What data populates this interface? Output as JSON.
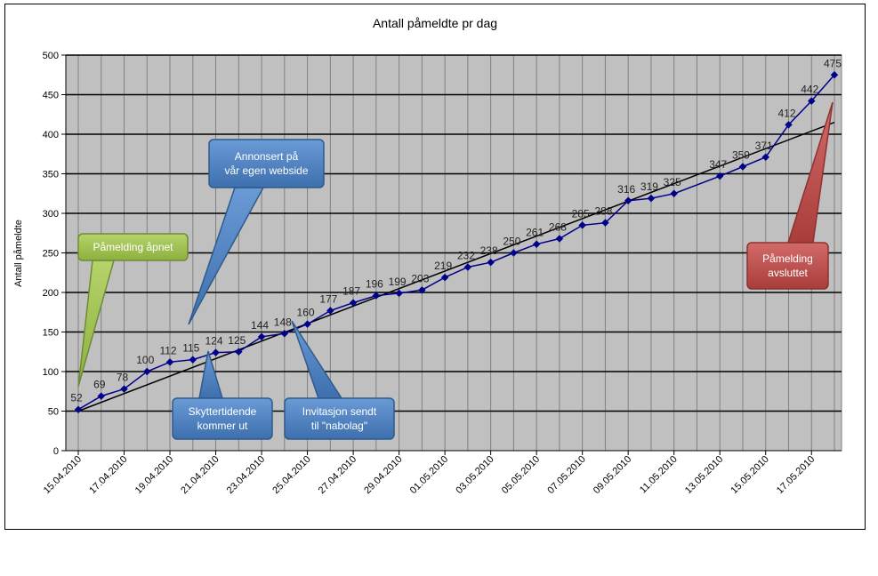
{
  "chart_data": {
    "type": "line",
    "title": "Antall påmeldte pr dag",
    "ylabel": "Antall påmeldte",
    "xlabel": "",
    "ylim": [
      0,
      500
    ],
    "yticks": [
      0,
      50,
      100,
      150,
      200,
      250,
      300,
      350,
      400,
      450,
      500
    ],
    "grid": true,
    "legend": "none",
    "x_range": [
      "15.04.2010",
      "18.05.2010"
    ],
    "x_tick_labels": [
      "15.04.2010",
      "17.04.2010",
      "19.04.2010",
      "21.04.2010",
      "23.04.2010",
      "25.04.2010",
      "27.04.2010",
      "29.04.2010",
      "01.05.2010",
      "03.05.2010",
      "05.05.2010",
      "07.05.2010",
      "09.05.2010",
      "11.05.2010",
      "13.05.2010",
      "15.05.2010",
      "17.05.2010"
    ],
    "series": [
      {
        "color": "#00008b",
        "points": [
          {
            "x": "15.04.2010",
            "y": 52,
            "label": "52"
          },
          {
            "x": "16.04.2010",
            "y": 69,
            "label": "69"
          },
          {
            "x": "17.04.2010",
            "y": 78,
            "label": "78"
          },
          {
            "x": "18.04.2010",
            "y": 100,
            "label": "100"
          },
          {
            "x": "19.04.2010",
            "y": 112,
            "label": "112"
          },
          {
            "x": "20.04.2010",
            "y": 115,
            "label": "115"
          },
          {
            "x": "21.04.2010",
            "y": 124,
            "label": "124"
          },
          {
            "x": "22.04.2010",
            "y": 125,
            "label": "125"
          },
          {
            "x": "23.04.2010",
            "y": 144,
            "label": "144"
          },
          {
            "x": "24.04.2010",
            "y": 148,
            "label": "148"
          },
          {
            "x": "25.04.2010",
            "y": 160,
            "label": "160"
          },
          {
            "x": "26.04.2010",
            "y": 177,
            "label": "177"
          },
          {
            "x": "27.04.2010",
            "y": 187,
            "label": "187"
          },
          {
            "x": "28.04.2010",
            "y": 196,
            "label": "196"
          },
          {
            "x": "29.04.2010",
            "y": 199,
            "label": "199"
          },
          {
            "x": "30.04.2010",
            "y": 203,
            "label": "203"
          },
          {
            "x": "01.05.2010",
            "y": 219,
            "label": "219"
          },
          {
            "x": "02.05.2010",
            "y": 232,
            "label": "232"
          },
          {
            "x": "03.05.2010",
            "y": 238,
            "label": "238"
          },
          {
            "x": "04.05.2010",
            "y": 250,
            "label": "250"
          },
          {
            "x": "05.05.2010",
            "y": 261,
            "label": "261"
          },
          {
            "x": "06.05.2010",
            "y": 268,
            "label": "268"
          },
          {
            "x": "07.05.2010",
            "y": 285,
            "label": "285"
          },
          {
            "x": "08.05.2010",
            "y": 288,
            "label": "288"
          },
          {
            "x": "09.05.2010",
            "y": 316,
            "label": "316"
          },
          {
            "x": "10.05.2010",
            "y": 319,
            "label": "319"
          },
          {
            "x": "11.05.2010",
            "y": 325,
            "label": "325"
          },
          {
            "x": "13.05.2010",
            "y": 347,
            "label": "347"
          },
          {
            "x": "14.05.2010",
            "y": 359,
            "label": "359"
          },
          {
            "x": "15.05.2010",
            "y": 371,
            "label": "371"
          },
          {
            "x": "16.05.2010",
            "y": 412,
            "label": "412"
          },
          {
            "x": "17.05.2010",
            "y": 442,
            "label": "442"
          },
          {
            "x": "18.05.2010",
            "y": 475,
            "label": "475"
          }
        ]
      }
    ],
    "trendline": {
      "type": "linear",
      "color": "#000000",
      "start": {
        "x": "15.04.2010",
        "y": 50
      },
      "end": {
        "x": "18.05.2010",
        "y": 415
      }
    },
    "annotations": [
      {
        "name": "callout-pamelding-apnet",
        "text": [
          "Påmelding åpnet"
        ],
        "color": "#9bbb59"
      },
      {
        "name": "callout-annonsert",
        "text": [
          "Annonsert på",
          "vår egen webside"
        ],
        "color": "#4f81bd"
      },
      {
        "name": "callout-skyttertidende",
        "text": [
          "Skyttertidende",
          "kommer ut"
        ],
        "color": "#4f81bd"
      },
      {
        "name": "callout-invitasjon",
        "text": [
          "Invitasjon sendt",
          "til \"nabolag\""
        ],
        "color": "#4f81bd"
      },
      {
        "name": "callout-pamelding-avsluttet",
        "text": [
          "Påmelding",
          "avsluttet"
        ],
        "color": "#c0504d"
      }
    ],
    "colors": {
      "plot_background": "#c0c0c0",
      "gridline": "#000000",
      "vertical_grid": "#808080"
    }
  }
}
